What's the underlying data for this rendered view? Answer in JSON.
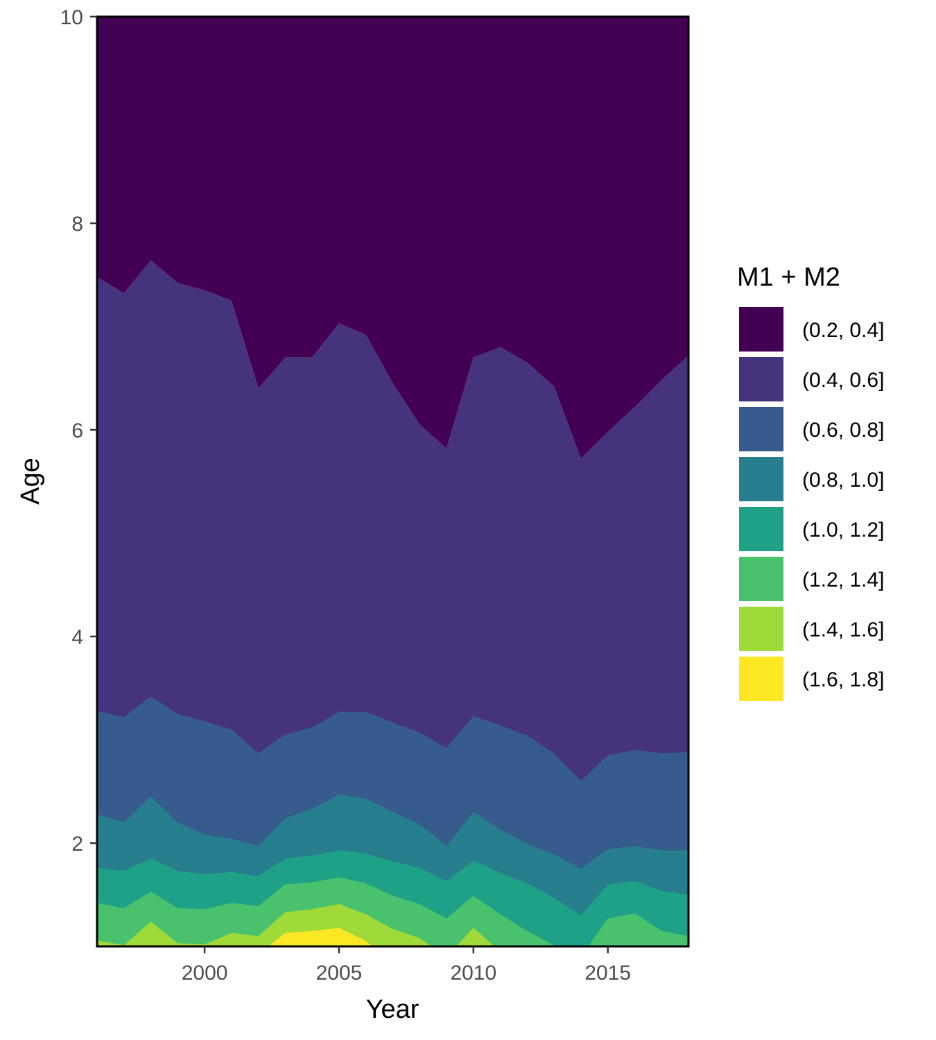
{
  "chart_data": {
    "type": "area",
    "subtype": "filled-contour",
    "xlabel": "Year",
    "ylabel": "Age",
    "xlim": [
      1996,
      2018
    ],
    "ylim": [
      1,
      10
    ],
    "x_ticks": [
      2000,
      2005,
      2010,
      2015
    ],
    "y_ticks": [
      2,
      4,
      6,
      8,
      10
    ],
    "grid": false,
    "legend": {
      "title": "M1 + M2",
      "position": "right",
      "levels": [
        "(0.2, 0.4]",
        "(0.4, 0.6]",
        "(0.6, 0.8]",
        "(0.8, 1.0]",
        "(1.0, 1.2]",
        "(1.2, 1.4]",
        "(1.4, 1.6]",
        "(1.6, 1.8]"
      ],
      "colors": [
        "#440154",
        "#46337e",
        "#365c8d",
        "#277f8e",
        "#1fa187",
        "#4ac16d",
        "#a0da39",
        "#fde725"
      ]
    },
    "x": [
      1996,
      1997,
      1998,
      1999,
      2000,
      2001,
      2002,
      2003,
      2004,
      2005,
      2006,
      2007,
      2008,
      2009,
      2010,
      2011,
      2012,
      2013,
      2014,
      2015,
      2016,
      2017,
      2018
    ],
    "boundaries": [
      {
        "between": [
          "(0.2, 0.4]",
          "(0.4, 0.6]"
        ],
        "age": [
          7.48,
          7.32,
          7.64,
          7.42,
          7.35,
          7.25,
          6.4,
          6.7,
          6.7,
          7.03,
          6.92,
          6.45,
          6.05,
          5.82,
          6.7,
          6.8,
          6.65,
          6.42,
          5.72,
          5.98,
          6.22,
          6.48,
          6.72
        ]
      },
      {
        "between": [
          "(0.4, 0.6]",
          "(0.6, 0.8]"
        ],
        "age": [
          3.28,
          3.22,
          3.42,
          3.25,
          3.18,
          3.1,
          2.87,
          3.05,
          3.12,
          3.27,
          3.27,
          3.17,
          3.07,
          2.92,
          3.23,
          3.14,
          3.04,
          2.87,
          2.6,
          2.85,
          2.9,
          2.87,
          2.88
        ]
      },
      {
        "between": [
          "(0.6, 0.8]",
          "(0.8, 1.0]"
        ],
        "age": [
          2.28,
          2.2,
          2.45,
          2.2,
          2.08,
          2.04,
          1.97,
          2.24,
          2.33,
          2.47,
          2.43,
          2.3,
          2.18,
          1.97,
          2.3,
          2.13,
          1.99,
          1.89,
          1.75,
          1.94,
          1.97,
          1.93,
          1.93
        ]
      },
      {
        "between": [
          "(0.8, 1.0]",
          "(1.0, 1.2]"
        ],
        "age": [
          1.76,
          1.73,
          1.85,
          1.73,
          1.7,
          1.72,
          1.68,
          1.85,
          1.88,
          1.93,
          1.9,
          1.82,
          1.76,
          1.63,
          1.83,
          1.71,
          1.61,
          1.47,
          1.3,
          1.6,
          1.63,
          1.54,
          1.5
        ]
      },
      {
        "between": [
          "(1.0, 1.2]",
          "(1.2, 1.4]"
        ],
        "age": [
          1.42,
          1.37,
          1.53,
          1.37,
          1.36,
          1.42,
          1.39,
          1.6,
          1.62,
          1.67,
          1.61,
          1.49,
          1.41,
          1.27,
          1.49,
          1.31,
          1.15,
          1.01,
          0.9,
          1.27,
          1.32,
          1.15,
          1.1
        ]
      },
      {
        "between": [
          "(1.2, 1.4]",
          "(1.4, 1.6]"
        ],
        "age": [
          1.06,
          1.01,
          1.24,
          1.03,
          1.02,
          1.13,
          1.1,
          1.33,
          1.36,
          1.41,
          1.31,
          1.17,
          1.08,
          0.9,
          1.18,
          0.95,
          0.8,
          0.8,
          0.8,
          0.9,
          0.9,
          0.9,
          0.9
        ]
      },
      {
        "between": [
          "(1.4, 1.6]",
          "(1.6, 1.8]"
        ],
        "age": [
          0.8,
          0.8,
          0.8,
          0.8,
          0.8,
          0.8,
          0.92,
          1.13,
          1.15,
          1.18,
          1.05,
          0.85,
          0.8,
          0.8,
          0.8,
          0.8,
          0.8,
          0.8,
          0.8,
          0.8,
          0.8,
          0.8,
          0.8
        ]
      }
    ]
  }
}
